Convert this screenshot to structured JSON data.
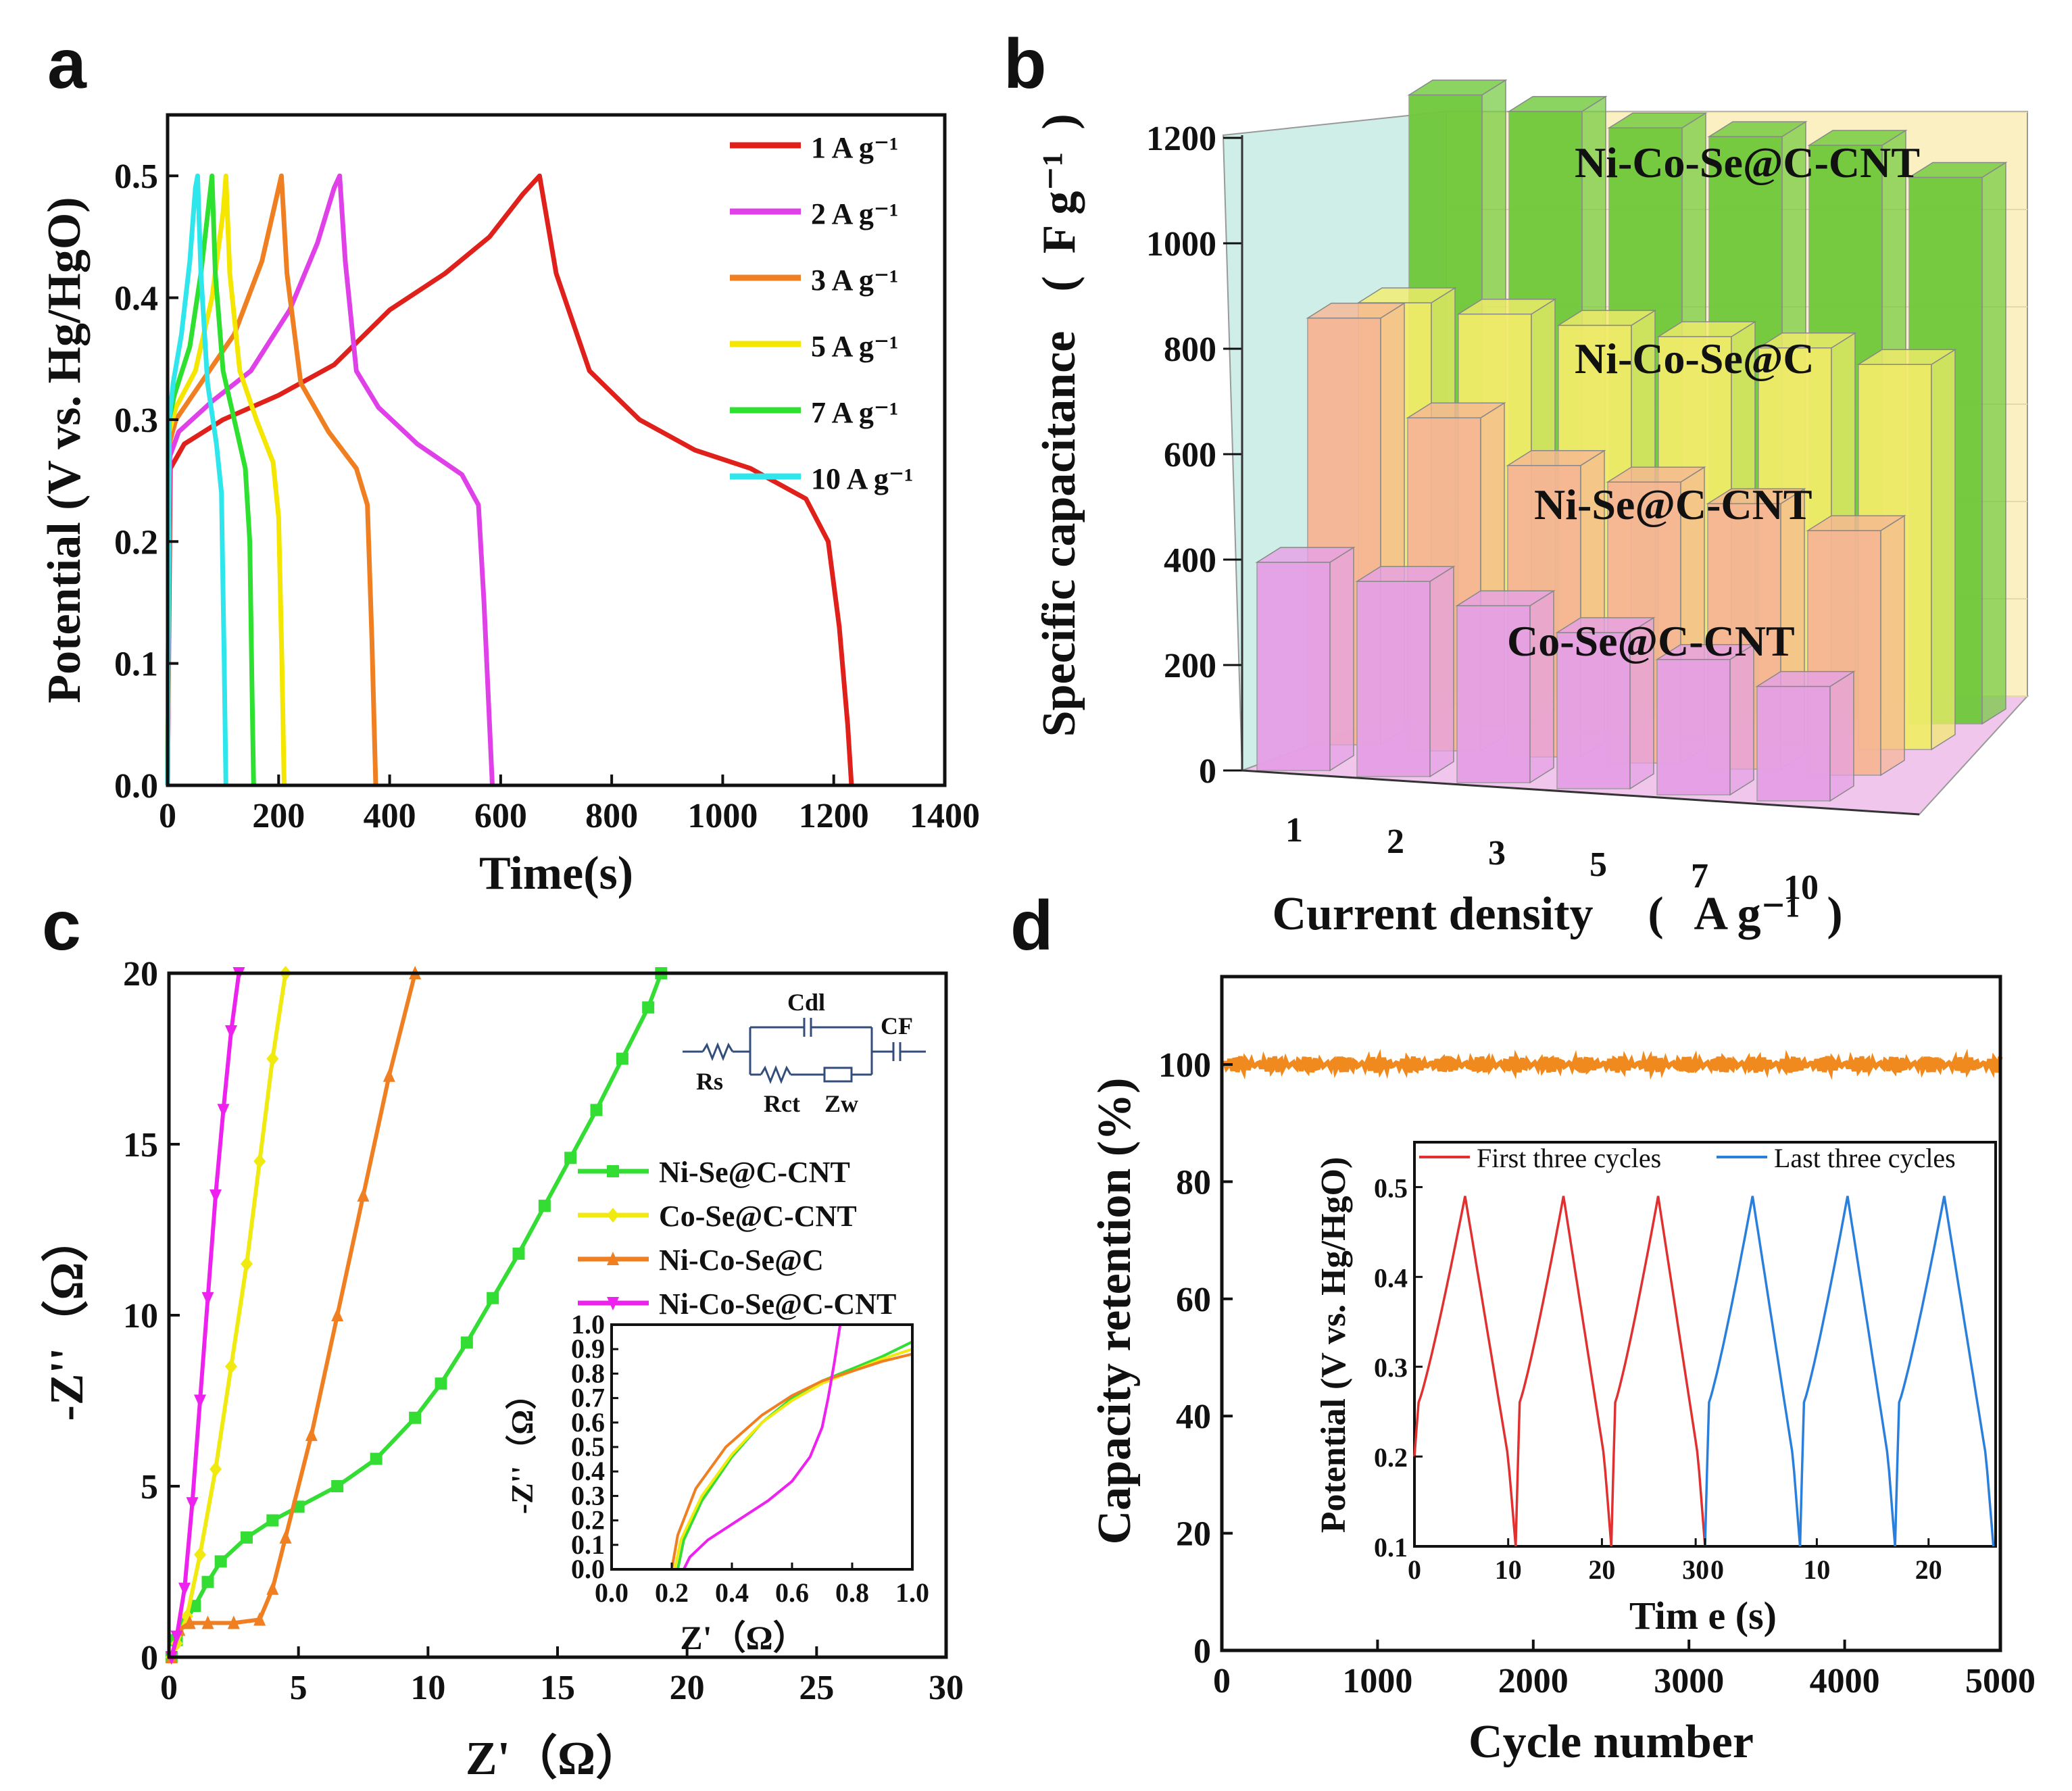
{
  "panels": {
    "a": {
      "letter": "a"
    },
    "b": {
      "letter": "b"
    },
    "c": {
      "letter": "c"
    },
    "d": {
      "letter": "d"
    }
  },
  "chart_data": [
    {
      "id": "a",
      "type": "line",
      "title": "",
      "xlabel": "Time(s)",
      "ylabel": "Potential (V vs. Hg/HgO)",
      "xlim": [
        0,
        1400
      ],
      "ylim": [
        0,
        0.55
      ],
      "xticks": [
        0,
        200,
        400,
        600,
        800,
        1000,
        1200,
        1400
      ],
      "yticks": [
        0.0,
        0.1,
        0.2,
        0.3,
        0.4,
        0.5
      ],
      "ytick_labels": [
        "0.0",
        "0.1",
        "0.2",
        "0.3",
        "0.4",
        "0.5"
      ],
      "legend_position": "top-right",
      "series": [
        {
          "name": "1 A g⁻¹",
          "color": "#e0201a",
          "x": [
            0,
            5,
            30,
            100,
            200,
            300,
            400,
            500,
            580,
            640,
            670,
            700,
            760,
            850,
            950,
            1050,
            1150,
            1190,
            1210,
            1225,
            1232
          ],
          "y": [
            0,
            0.26,
            0.28,
            0.3,
            0.32,
            0.345,
            0.39,
            0.42,
            0.45,
            0.485,
            0.5,
            0.42,
            0.34,
            0.3,
            0.275,
            0.26,
            0.235,
            0.2,
            0.13,
            0.05,
            0
          ]
        },
        {
          "name": "2 A g⁻¹",
          "color": "#e040e8",
          "x": [
            0,
            4,
            20,
            80,
            150,
            220,
            270,
            300,
            310,
            320,
            340,
            380,
            450,
            530,
            560,
            570,
            580,
            585
          ],
          "y": [
            0,
            0.27,
            0.29,
            0.315,
            0.34,
            0.39,
            0.445,
            0.49,
            0.5,
            0.43,
            0.34,
            0.31,
            0.28,
            0.255,
            0.23,
            0.15,
            0.05,
            0
          ]
        },
        {
          "name": "3 A g⁻¹",
          "color": "#f07f22",
          "x": [
            0,
            3,
            15,
            60,
            120,
            170,
            195,
            205,
            215,
            240,
            290,
            340,
            360,
            368,
            375
          ],
          "y": [
            0,
            0.28,
            0.3,
            0.33,
            0.37,
            0.43,
            0.48,
            0.5,
            0.42,
            0.33,
            0.29,
            0.26,
            0.23,
            0.12,
            0
          ]
        },
        {
          "name": "5 A g⁻¹",
          "color": "#f5e600",
          "x": [
            0,
            3,
            15,
            50,
            80,
            100,
            105,
            112,
            130,
            160,
            190,
            200,
            206,
            210
          ],
          "y": [
            0,
            0.29,
            0.31,
            0.34,
            0.4,
            0.47,
            0.5,
            0.42,
            0.34,
            0.3,
            0.265,
            0.22,
            0.1,
            0
          ]
        },
        {
          "name": "7 A g⁻¹",
          "color": "#2ee030",
          "x": [
            0,
            3,
            12,
            40,
            60,
            75,
            80,
            86,
            100,
            125,
            140,
            148,
            152,
            155
          ],
          "y": [
            0,
            0.3,
            0.32,
            0.36,
            0.42,
            0.48,
            0.5,
            0.42,
            0.34,
            0.29,
            0.26,
            0.2,
            0.08,
            0
          ]
        },
        {
          "name": "10 A g⁻¹",
          "color": "#2ee6ec",
          "x": [
            0,
            3,
            10,
            25,
            40,
            50,
            54,
            60,
            72,
            88,
            97,
            102,
            105
          ],
          "y": [
            0,
            0.3,
            0.33,
            0.37,
            0.43,
            0.49,
            0.5,
            0.42,
            0.33,
            0.28,
            0.24,
            0.1,
            0
          ]
        }
      ]
    },
    {
      "id": "b",
      "type": "bar",
      "title": "",
      "xlabel": "Current density",
      "xlabel_unit": "A g⁻¹",
      "ylabel": "Specific capacitance",
      "ylabel_unit": "F g⁻¹",
      "ylim": [
        0,
        1200
      ],
      "yticks": [
        0,
        200,
        400,
        600,
        800,
        1000,
        1200
      ],
      "categories": [
        "1",
        "2",
        "3",
        "5",
        "7",
        "10"
      ],
      "series": [
        {
          "name": "Ni-Co-Se@C-CNT",
          "color": "#6fc93a",
          "values": [
            1150,
            1130,
            1110,
            1105,
            1100,
            1050
          ]
        },
        {
          "name": "Ni-Co-Se@C",
          "color": "#f2ec6a",
          "values": [
            800,
            790,
            780,
            770,
            760,
            740
          ]
        },
        {
          "name": "Ni-Se@C-CNT",
          "color": "#f6b695",
          "values": [
            820,
            640,
            560,
            540,
            510,
            470
          ]
        },
        {
          "name": "Co-Se@C-CNT",
          "color": "#e6a0e6",
          "values": [
            400,
            375,
            340,
            300,
            260,
            220
          ]
        }
      ]
    },
    {
      "id": "c",
      "type": "scatter",
      "title": "",
      "xlabel": "Z'（Ω）",
      "ylabel": "-Z''（Ω）",
      "xlim": [
        0,
        30
      ],
      "ylim": [
        0,
        20
      ],
      "xticks": [
        0,
        5,
        10,
        15,
        20,
        25,
        30
      ],
      "yticks": [
        0,
        5,
        10,
        15,
        20
      ],
      "legend_position": "right",
      "circuit_labels": {
        "cdl": "Cdl",
        "cf": "CF",
        "rs": "Rs",
        "rct": "Rct",
        "zw": "Zw"
      },
      "series": [
        {
          "name": "Ni-Se@C-CNT",
          "color": "#33dd33",
          "marker": "square",
          "x": [
            0.1,
            0.3,
            0.6,
            1.0,
            1.5,
            2.0,
            3.0,
            4.0,
            5.0,
            6.5,
            8.0,
            9.5,
            10.5,
            11.5,
            12.5,
            13.5,
            14.5,
            15.5,
            16.5,
            17.5,
            18.5,
            19.0
          ],
          "y": [
            0.0,
            0.5,
            1.0,
            1.5,
            2.2,
            2.8,
            3.5,
            4.0,
            4.4,
            5.0,
            5.8,
            7.0,
            8.0,
            9.2,
            10.5,
            11.8,
            13.2,
            14.6,
            16.0,
            17.5,
            19.0,
            20.0
          ]
        },
        {
          "name": "Co-Se@C-CNT",
          "color": "#f0ea10",
          "marker": "diamond",
          "x": [
            0.1,
            0.3,
            0.7,
            1.2,
            1.8,
            2.4,
            3.0,
            3.5,
            4.0,
            4.5
          ],
          "y": [
            0.0,
            0.4,
            1.2,
            3.0,
            5.5,
            8.5,
            11.5,
            14.5,
            17.5,
            20.0
          ]
        },
        {
          "name": "Ni-Co-Se@C",
          "color": "#f07f22",
          "marker": "triangle-up",
          "x": [
            0.1,
            0.4,
            0.8,
            1.5,
            2.5,
            3.5,
            4.0,
            4.5,
            5.5,
            6.5,
            7.5,
            8.5,
            9.5
          ],
          "y": [
            0.0,
            0.8,
            1.0,
            1.0,
            1.0,
            1.1,
            2.0,
            3.5,
            6.5,
            10.0,
            13.5,
            17.0,
            20.0
          ]
        },
        {
          "name": "Ni-Co-Se@C-CNT",
          "color": "#ee22ee",
          "marker": "triangle-down",
          "x": [
            0.1,
            0.3,
            0.6,
            0.9,
            1.2,
            1.5,
            1.8,
            2.1,
            2.4,
            2.7
          ],
          "y": [
            0.0,
            0.6,
            2.0,
            4.5,
            7.5,
            10.5,
            13.5,
            16.0,
            18.3,
            20.0
          ]
        }
      ],
      "inset": {
        "xlabel": "Z'（Ω）",
        "ylabel": "-Z''（Ω）",
        "xlim": [
          0.0,
          1.0
        ],
        "ylim": [
          0.0,
          1.0
        ],
        "xticks": [
          0.0,
          0.2,
          0.4,
          0.6,
          0.8,
          1.0
        ],
        "yticks": [
          0.0,
          0.1,
          0.2,
          0.3,
          0.4,
          0.5,
          0.6,
          0.7,
          0.8,
          0.9,
          1.0
        ],
        "series": [
          {
            "name": "Ni-Se@C-CNT",
            "color": "#33dd33",
            "x": [
              0.22,
              0.24,
              0.3,
              0.4,
              0.5,
              0.6,
              0.7,
              0.8,
              0.9,
              1.0
            ],
            "y": [
              0.0,
              0.12,
              0.28,
              0.46,
              0.6,
              0.7,
              0.77,
              0.82,
              0.87,
              0.93
            ]
          },
          {
            "name": "Co-Se@C-CNT",
            "color": "#f0ea10",
            "x": [
              0.21,
              0.23,
              0.3,
              0.4,
              0.5,
              0.6,
              0.7,
              0.8,
              0.9,
              1.0
            ],
            "y": [
              0.0,
              0.12,
              0.3,
              0.47,
              0.6,
              0.69,
              0.76,
              0.81,
              0.86,
              0.9
            ]
          },
          {
            "name": "Ni-Co-Se@C",
            "color": "#f07f22",
            "x": [
              0.2,
              0.22,
              0.28,
              0.38,
              0.5,
              0.6,
              0.7,
              0.8,
              0.9,
              1.0
            ],
            "y": [
              0.0,
              0.14,
              0.33,
              0.5,
              0.63,
              0.71,
              0.77,
              0.81,
              0.85,
              0.88
            ]
          },
          {
            "name": "Ni-Co-Se@C-CNT",
            "color": "#ee22ee",
            "x": [
              0.24,
              0.26,
              0.32,
              0.42,
              0.52,
              0.6,
              0.66,
              0.7,
              0.72,
              0.74,
              0.76
            ],
            "y": [
              0.0,
              0.05,
              0.12,
              0.2,
              0.28,
              0.36,
              0.46,
              0.58,
              0.7,
              0.84,
              1.0
            ]
          }
        ]
      }
    },
    {
      "id": "d",
      "type": "line",
      "title": "",
      "xlabel": "Cycle number",
      "ylabel": "Capacity retention (%)",
      "xlim": [
        0,
        5000
      ],
      "ylim": [
        0,
        115
      ],
      "xticks": [
        0,
        1000,
        2000,
        3000,
        4000,
        5000
      ],
      "yticks": [
        0,
        20,
        40,
        60,
        80,
        100
      ],
      "series": [
        {
          "name": "Capacity retention",
          "color": "#f08a1e",
          "x": [
            0,
            5000
          ],
          "y": [
            100,
            100
          ]
        }
      ],
      "inset": {
        "xlabel": "Tim e (s)",
        "ylabel": "Potential (V vs. Hg/HgO)",
        "ylim": [
          0.1,
          0.55
        ],
        "yticks": [
          0.1,
          0.2,
          0.3,
          0.4,
          0.5
        ],
        "left_xticks": [
          0,
          10,
          20,
          30
        ],
        "right_xticks": [
          0,
          10,
          20
        ],
        "left_xlim": [
          0,
          31
        ],
        "right_xlim": [
          0,
          26
        ],
        "series": [
          {
            "name": "First three cycles",
            "color": "#e03030",
            "cycles": [
              [
                0,
                10.8
              ],
              [
                10.8,
                21
              ],
              [
                21,
                31
              ]
            ],
            "peak": 0.49,
            "start": 0.2
          },
          {
            "name": "Last three cycles",
            "color": "#2a7fdc",
            "cycles": [
              [
                0,
                8.5
              ],
              [
                8.5,
                17
              ],
              [
                17,
                25.8
              ]
            ],
            "peak": 0.49,
            "start": 0.1
          }
        ]
      }
    }
  ]
}
